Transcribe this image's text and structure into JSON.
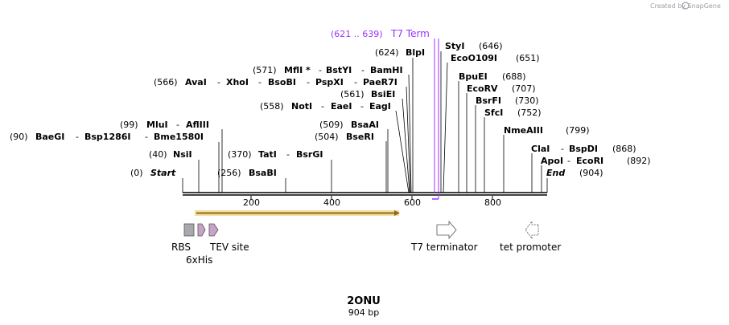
{
  "credit": "Created by SnapGene",
  "plasmid": {
    "name": "2ONU",
    "length_label": "904 bp"
  },
  "scale_ticks": [
    "200",
    "400",
    "600",
    "800"
  ],
  "terminator_label": {
    "range": "(621 .. 639)",
    "name": "T7 Term"
  },
  "sites": [
    {
      "pos": "(0)",
      "name": "Start"
    },
    {
      "pos": "(40)",
      "name": "NsiI"
    },
    {
      "pos": "(90)",
      "name": "BaeGI",
      "extra": [
        "Bsp1286I",
        "Bme1580I"
      ]
    },
    {
      "pos": "(99)",
      "name": "MluI",
      "extra": [
        "AflIII"
      ]
    },
    {
      "pos": "(256)",
      "name": "BsaBI"
    },
    {
      "pos": "(370)",
      "name": "TatI",
      "extra": [
        "BsrGI"
      ]
    },
    {
      "pos": "(504)",
      "name": "BseRI"
    },
    {
      "pos": "(509)",
      "name": "BsaAI"
    },
    {
      "pos": "(558)",
      "name": "NotI",
      "extra": [
        "EaeI",
        "EagI"
      ]
    },
    {
      "pos": "(561)",
      "name": "BsiEI"
    },
    {
      "pos": "(566)",
      "name": "AvaI",
      "extra": [
        "XhoI",
        "BsoBI",
        "PspXI",
        "PaeR7I"
      ]
    },
    {
      "pos": "(571)",
      "name": "MflI *",
      "extra": [
        "BstYI",
        "BamHI"
      ]
    },
    {
      "pos": "(624)",
      "name": "BlpI"
    },
    {
      "pos": "(646)",
      "name": "StyI"
    },
    {
      "pos": "(651)",
      "name": "EcoO109I"
    },
    {
      "pos": "(688)",
      "name": "BpuEI"
    },
    {
      "pos": "(707)",
      "name": "EcoRV"
    },
    {
      "pos": "(730)",
      "name": "BsrFI"
    },
    {
      "pos": "(752)",
      "name": "SfcI"
    },
    {
      "pos": "(799)",
      "name": "NmeAIII"
    },
    {
      "pos": "(868)",
      "name": "ClaI",
      "extra": [
        "BspDI"
      ]
    },
    {
      "pos": "(892)",
      "name": "ApoI",
      "extra": [
        "EcoRI"
      ]
    },
    {
      "pos": "(904)",
      "name": "End"
    }
  ],
  "features": [
    {
      "name": "RBS"
    },
    {
      "name": "6xHis"
    },
    {
      "name": "TEV site"
    },
    {
      "name": "T7 terminator"
    },
    {
      "name": "tet promoter"
    }
  ],
  "colors": {
    "orf": "#f0b429",
    "orf_outline": "#8a6d1a",
    "rbs": "#a7a9ad",
    "his": "#c8a2c8",
    "tev": "#c8a2c8",
    "terminator_line": "#9b30ff",
    "backbone": "#000000"
  }
}
